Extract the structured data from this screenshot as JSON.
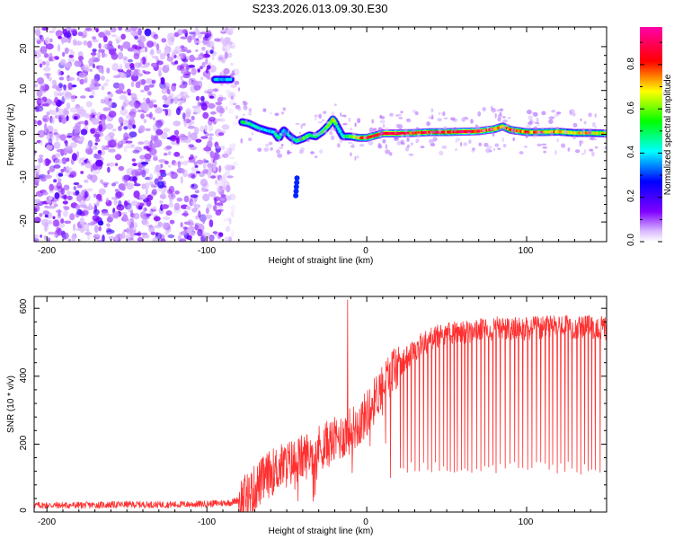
{
  "title": "S233.2026.013.09.30.E30",
  "chart_data": [
    {
      "type": "heatmap",
      "title": "S233.2026.013.09.30.E30",
      "xlabel": "Height of straight line (km)",
      "ylabel": "Frequency (Hz)",
      "xlim": [
        -208,
        150
      ],
      "ylim": [
        -24.5,
        24.5
      ],
      "xticks": [
        "-200",
        "-100",
        "0",
        "100"
      ],
      "yticks": [
        "20",
        "10",
        "0",
        "-10",
        "-20"
      ],
      "colorbar": {
        "label": "Normalized spectral amplitude",
        "range": [
          0,
          0.97
        ],
        "ticks": [
          "0.0",
          "0.2",
          "0.4",
          "0.6",
          "0.8"
        ],
        "colormap": [
          "#ffffff",
          "#8000ff",
          "#0000ff",
          "#00ffff",
          "#00ff00",
          "#ffff00",
          "#ff0000",
          "#ff00aa"
        ]
      },
      "noise_region": {
        "x_range": [
          -208,
          -80
        ],
        "mean_amplitude": 0.1
      },
      "signal_track": {
        "x": [
          -95,
          -85,
          -78,
          -74,
          -68,
          -62,
          -58,
          -55,
          -52,
          -48,
          -44,
          -40,
          -36,
          -32,
          -28,
          -24,
          -21,
          -18,
          -15,
          -10,
          -5,
          0,
          10,
          20,
          30,
          40,
          50,
          60,
          70,
          80,
          85,
          90,
          100,
          110,
          120,
          130,
          140,
          150
        ],
        "frequency": [
          12.5,
          12.5,
          2.8,
          2.5,
          1.5,
          0.8,
          0.5,
          -1.0,
          1.0,
          -0.5,
          -1.5,
          -1.0,
          -0.2,
          -0.5,
          0.5,
          2.0,
          3.5,
          1.5,
          -0.5,
          -0.5,
          -0.8,
          -0.8,
          0.2,
          0.2,
          0.3,
          0.5,
          0.5,
          0.6,
          0.7,
          1.2,
          1.8,
          1.0,
          0.5,
          0.5,
          0.6,
          0.3,
          0.3,
          0.2
        ],
        "amplitude": [
          0.4,
          0.4,
          0.55,
          0.5,
          0.45,
          0.4,
          0.45,
          0.5,
          0.4,
          0.45,
          0.5,
          0.6,
          0.55,
          0.5,
          0.55,
          0.6,
          0.7,
          0.5,
          0.45,
          0.6,
          0.75,
          0.85,
          0.9,
          0.95,
          0.85,
          0.9,
          0.85,
          0.95,
          0.9,
          0.85,
          0.8,
          0.85,
          0.8,
          0.75,
          0.8,
          0.7,
          0.75,
          0.7
        ]
      },
      "extra_blobs": [
        {
          "x": -44,
          "frequency": -12.0,
          "amplitude": 0.3
        }
      ]
    },
    {
      "type": "line",
      "xlabel": "Height of straight line (km)",
      "ylabel": "SNR (10 * v/v)",
      "xlim": [
        -208,
        150
      ],
      "ylim": [
        0,
        635
      ],
      "xticks": [
        "-200",
        "-100",
        "0",
        "100"
      ],
      "yticks": [
        "600",
        "400",
        "200",
        "0"
      ],
      "color": "#ff3030",
      "series": [
        {
          "name": "SNR",
          "x": [
            -208,
            -180,
            -150,
            -120,
            -100,
            -85,
            -75,
            -70,
            -65,
            -60,
            -55,
            -50,
            -45,
            -40,
            -35,
            -30,
            -25,
            -20,
            -15,
            -10,
            -5,
            0,
            5,
            10,
            15,
            20,
            30,
            40,
            50,
            60,
            80,
            100,
            120,
            140,
            150
          ],
          "baseline": [
            20,
            20,
            22,
            22,
            24,
            28,
            45,
            70,
            95,
            115,
            130,
            140,
            150,
            160,
            175,
            190,
            200,
            210,
            225,
            240,
            260,
            290,
            330,
            380,
            410,
            430,
            480,
            510,
            525,
            530,
            540,
            540,
            545,
            545,
            540
          ],
          "spike_x": -12,
          "spike_value": 625,
          "dropout_region_km": [
            18,
            148
          ],
          "dropout_floor": 110
        }
      ]
    }
  ]
}
